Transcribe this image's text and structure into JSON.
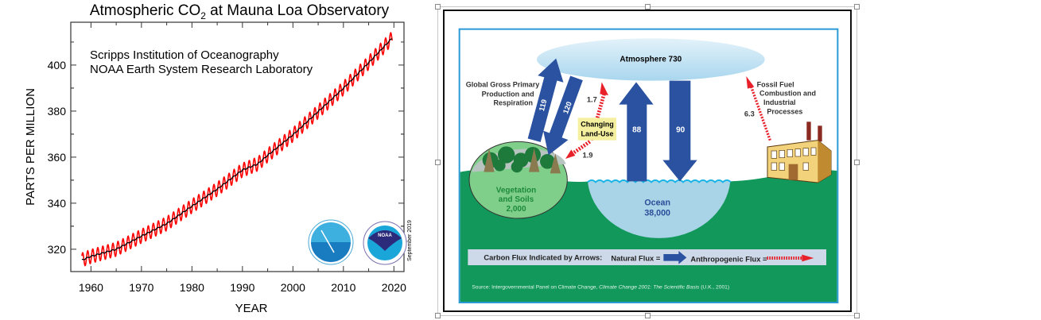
{
  "chart_data": {
    "type": "line",
    "title_parts": [
      "Atmospheric CO",
      "2",
      " at Mauna Loa Observatory"
    ],
    "annotation_lines": [
      "Scripps Institution of Oceanography",
      "NOAA Earth System Research Laboratory"
    ],
    "date_note": "September 2019",
    "xlabel": "YEAR",
    "ylabel": "PARTS PER MILLION",
    "xlim": [
      1956,
      2022
    ],
    "ylim": [
      310.3,
      418.6
    ],
    "xticks": [
      1960,
      1970,
      1980,
      1990,
      2000,
      2010,
      2020
    ],
    "yticks": [
      320,
      340,
      360,
      380,
      400
    ],
    "grid": false,
    "series": [
      {
        "kind": "seasonally-adjusted trend",
        "color": "#000000",
        "x": [
          1958.2,
          1960,
          1965,
          1970,
          1975,
          1980,
          1985,
          1990,
          1993,
          1995,
          2000,
          2005,
          2010,
          2015,
          2019.7
        ],
        "y": [
          315.3,
          316.9,
          320.0,
          325.7,
          331.1,
          338.7,
          346.1,
          354.4,
          357.0,
          360.8,
          369.7,
          379.8,
          389.9,
          401.0,
          411.8
        ]
      },
      {
        "kind": "monthly mean (seasonal cycle)",
        "color": "#ff0000",
        "seasonal_amplitude": 3.0
      }
    ],
    "logos": [
      "Scripps Institution of Oceanography",
      "NOAA"
    ]
  },
  "diagram": {
    "atmosphere": "Atmosphere 730",
    "gpp_label": [
      "Global Gross Primary",
      "Production and",
      "Respiration"
    ],
    "flux_119": "119",
    "flux_120": "120",
    "flux_1_7": "1.7",
    "flux_1_9": "1.9",
    "land_use": [
      "Changing",
      "Land-Use"
    ],
    "flux_88": "88",
    "flux_90": "90",
    "fossil_label": [
      "Fossil Fuel",
      "Combustion and",
      "Industrial",
      "Processes"
    ],
    "flux_6_3": "6.3",
    "vegetation": [
      "Vegetation",
      "and Soils",
      "2,000"
    ],
    "ocean": [
      "Ocean",
      "38,000"
    ],
    "legend_prefix": "Carbon Flux Indicated by Arrows:",
    "legend_natural": "Natural Flux =",
    "legend_anthro": "Anthropogenic Flux =",
    "source_prefix": "Source: Intergovernmental Panel on Climate Change, ",
    "source_title": "Climate Change 2001: The Scientific Basis",
    "source_suffix": " (U.K., 2001)",
    "colors": {
      "natural": "#2a52a0",
      "anthropogenic": "#e8202a",
      "ground": "#11985a",
      "ocean": "#a9d3e6",
      "border": "#2a9ad6"
    }
  }
}
